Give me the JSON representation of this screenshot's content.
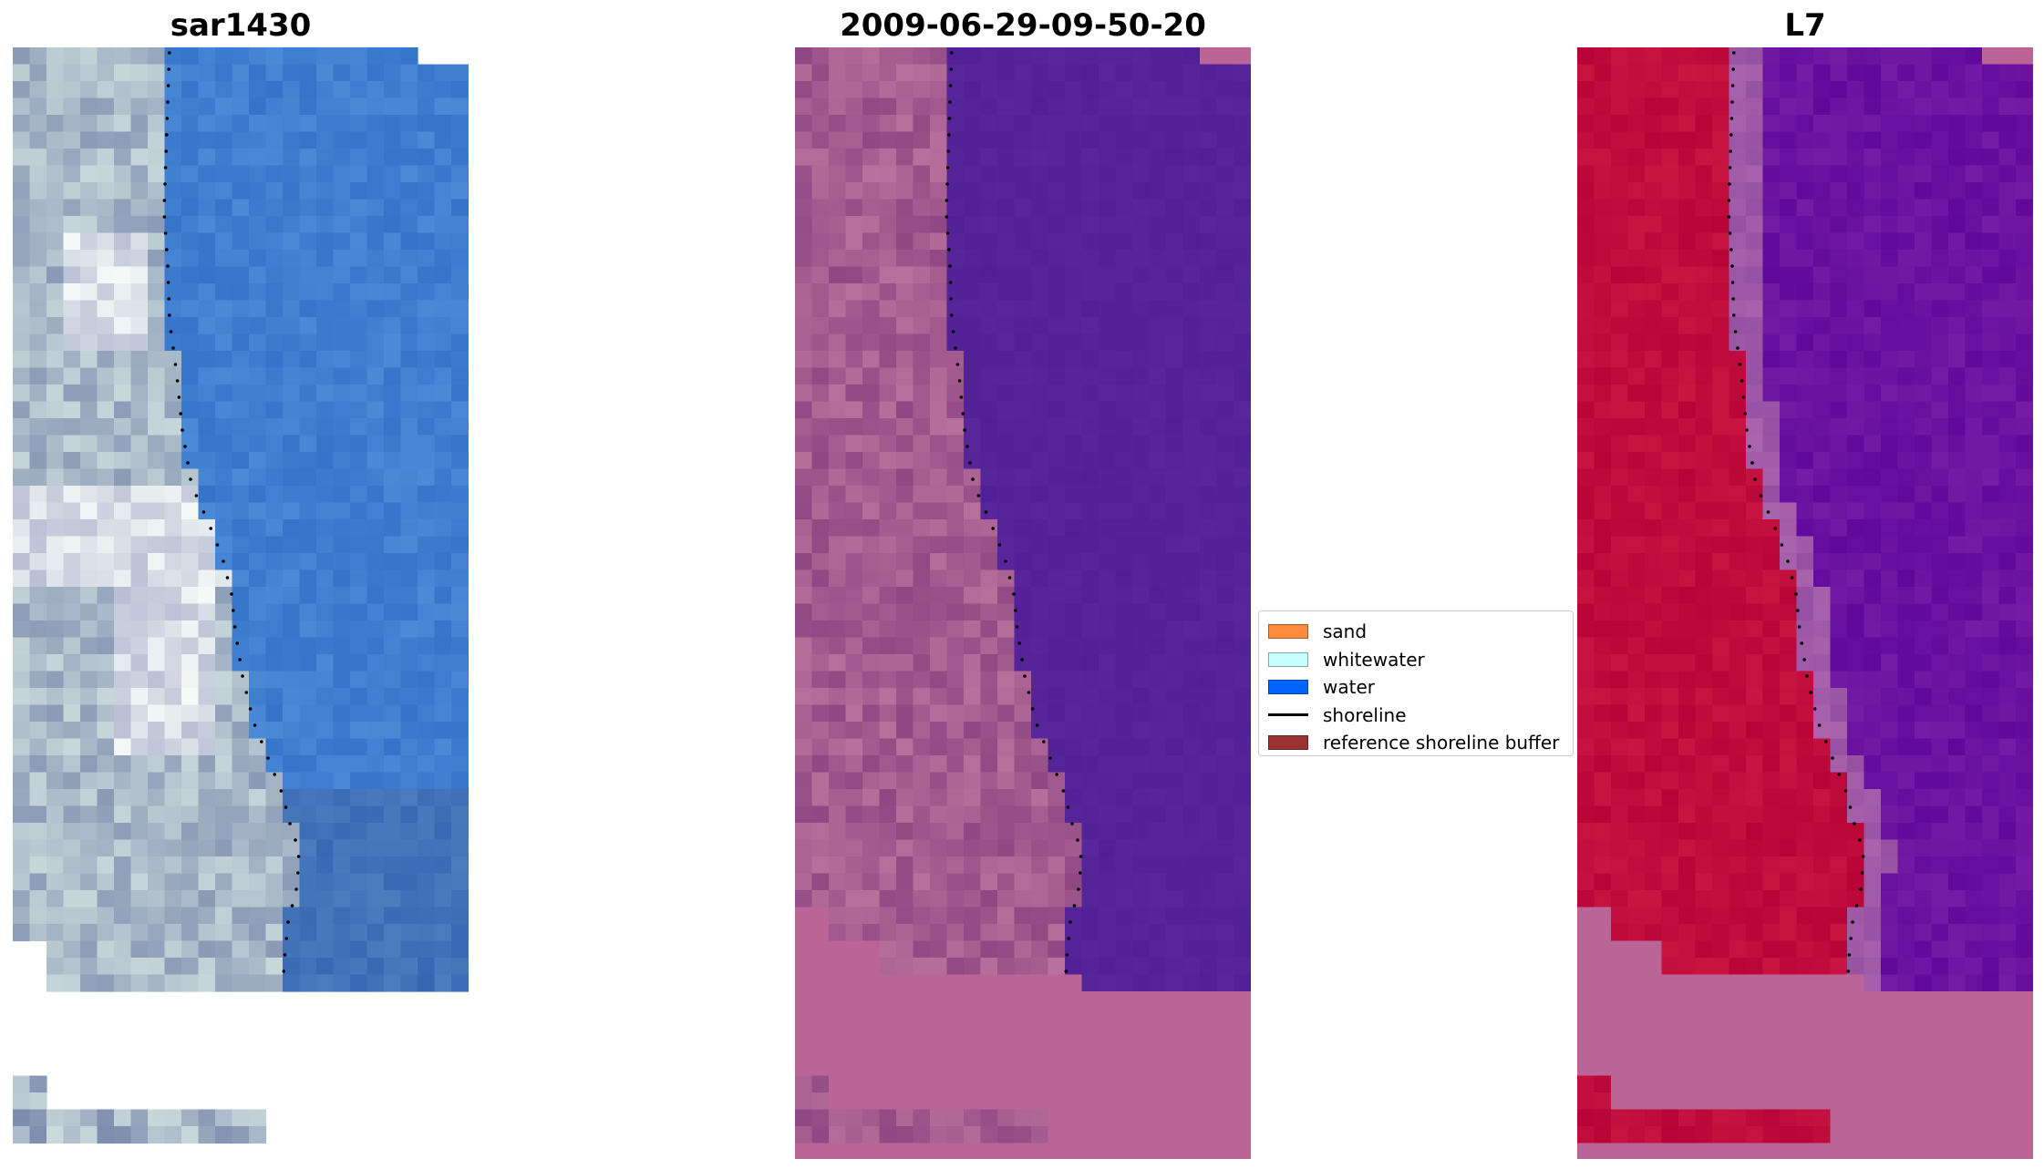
{
  "panels": [
    {
      "title": "sar1430"
    },
    {
      "title": "2009-06-29-09-50-20"
    },
    {
      "title": "L7"
    }
  ],
  "legend": {
    "items": [
      {
        "label": "sand",
        "kind": "patch",
        "color": "#ff8c3c"
      },
      {
        "label": "whitewater",
        "kind": "patch",
        "color": "#c8ffff"
      },
      {
        "label": "water",
        "kind": "patch",
        "color": "#0064ff"
      },
      {
        "label": "shoreline",
        "kind": "line",
        "color": "#000000"
      },
      {
        "label": "reference shoreline buffer",
        "kind": "patch",
        "color": "#9b3232"
      }
    ]
  },
  "colors": {
    "rgb_land_light": "#d8dde6",
    "rgb_land_mid": "#a9b9c8",
    "rgb_water": "#3f7fd0",
    "rgb_water_deep": "#4272b8",
    "false_land": "#a45c90",
    "false_water": "#542398",
    "false_nodata": "#bb6596",
    "index_land": "#c00c3c",
    "index_water": "#6a12a0",
    "index_nodata": "#bb6596",
    "shoreline": "#000000"
  }
}
